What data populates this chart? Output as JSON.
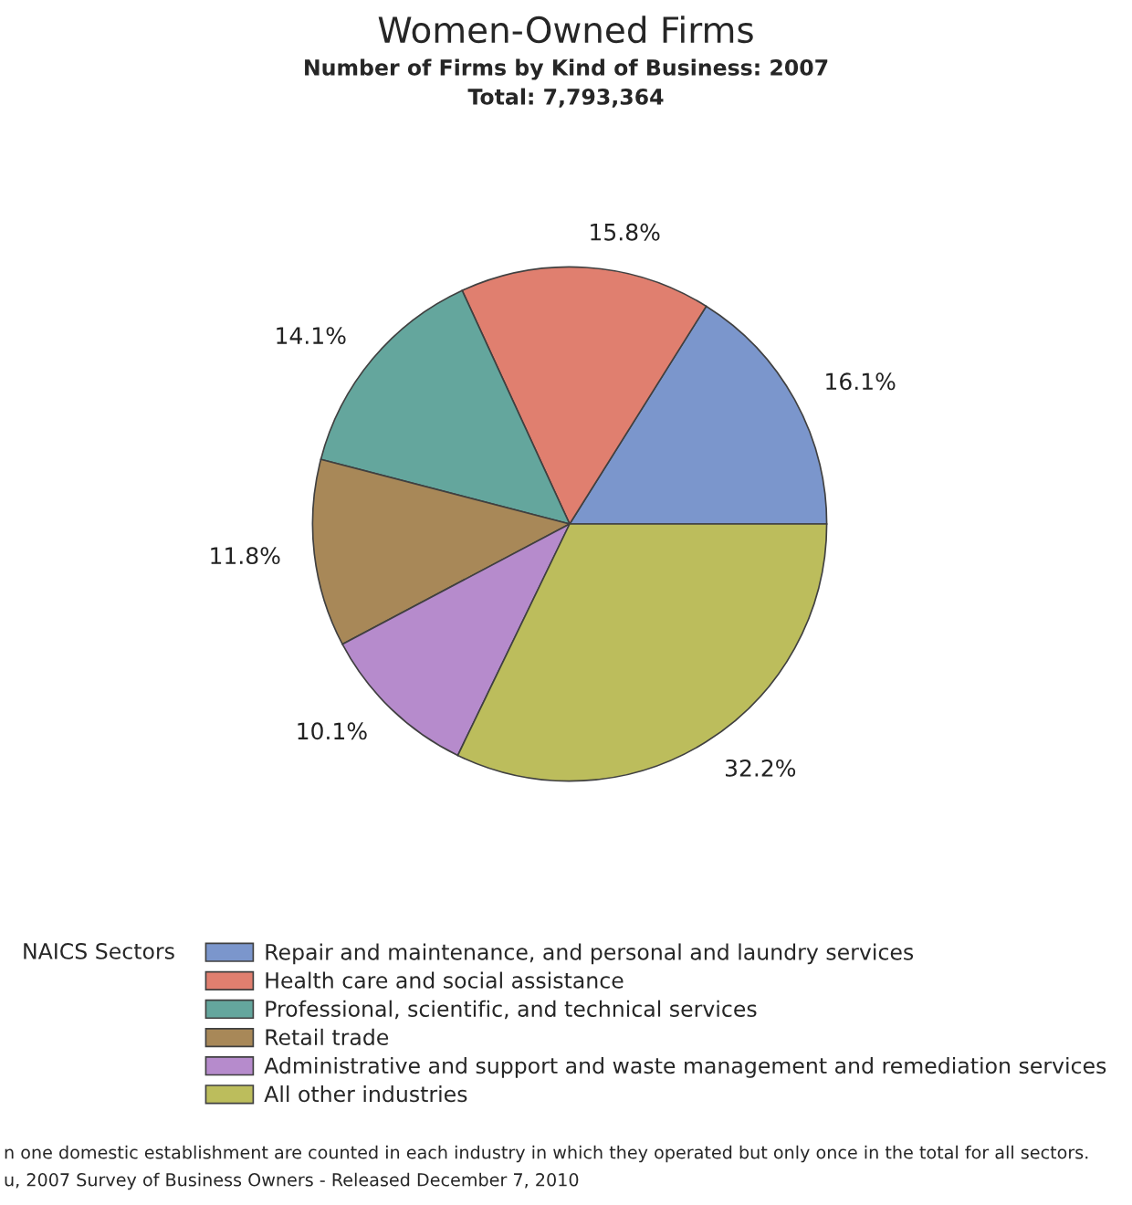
{
  "chart_data": {
    "type": "pie",
    "title": "Women-Owned Firms",
    "subtitle": "Number of Firms by Kind of Business: 2007\nTotal: 7,793,364",
    "categories": [
      "Repair and maintenance, and personal and laundry services",
      "Health care and social assistance",
      "Professional, scientific, and technical services",
      "Retail trade",
      "Administrative and support and waste management and remediation services",
      "All other industries"
    ],
    "values": [
      16.1,
      15.8,
      14.1,
      11.8,
      10.1,
      32.2
    ],
    "value_labels": [
      "16.1%",
      "15.8%",
      "14.1%",
      "11.8%",
      "10.1%",
      "32.2%"
    ],
    "colors": [
      "#7b96cc",
      "#e07f6f",
      "#64a69d",
      "#a88858",
      "#b68bcc",
      "#bcbd5c"
    ],
    "legend": "bottom",
    "legend_title": "NAICS Sectors",
    "annotations": [
      "n one domestic establishment are counted in each industry in which they operated but only once in the total for all sectors.",
      "u, 2007 Survey of Business Owners - Released December 7, 2010"
    ]
  }
}
